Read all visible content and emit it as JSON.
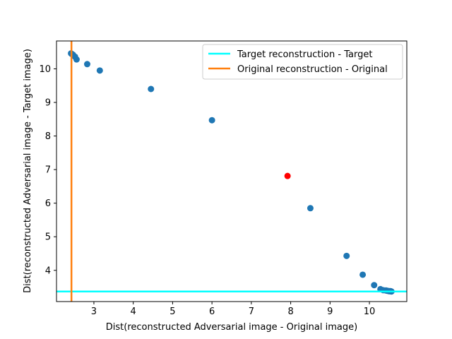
{
  "chart_data": {
    "type": "scatter",
    "title": "",
    "xlabel": "Dist(reconstructed Adversarial image - Original image)",
    "ylabel": "Dist(reconstructed Adversarial image - Target image)",
    "xlim": [
      2.05,
      10.95
    ],
    "ylim": [
      3.07,
      10.83
    ],
    "xticks": [
      3,
      4,
      5,
      6,
      7,
      8,
      9,
      10
    ],
    "yticks": [
      4,
      5,
      6,
      7,
      8,
      9,
      10
    ],
    "grid": false,
    "legend_position": "upper right",
    "series": [
      {
        "kind": "scatter",
        "color": "#1f77b4",
        "points": [
          [
            2.42,
            10.46
          ],
          [
            2.44,
            10.44
          ],
          [
            2.47,
            10.42
          ],
          [
            2.52,
            10.36
          ],
          [
            2.56,
            10.28
          ],
          [
            2.83,
            10.14
          ],
          [
            3.15,
            9.95
          ],
          [
            4.45,
            9.4
          ],
          [
            6.0,
            8.47
          ],
          [
            8.5,
            5.85
          ],
          [
            9.42,
            4.43
          ],
          [
            9.83,
            3.87
          ],
          [
            10.12,
            3.56
          ],
          [
            10.28,
            3.44
          ],
          [
            10.35,
            3.41
          ],
          [
            10.42,
            3.4
          ],
          [
            10.46,
            3.39
          ],
          [
            10.5,
            3.38
          ],
          [
            10.52,
            3.38
          ],
          [
            10.54,
            3.38
          ],
          [
            10.56,
            3.37
          ]
        ]
      },
      {
        "kind": "scatter",
        "color": "#ff0000",
        "points": [
          [
            7.92,
            6.81
          ]
        ]
      },
      {
        "kind": "hline",
        "name": "Target reconstruction - Target",
        "color": "#00ffff",
        "y": 3.37
      },
      {
        "kind": "vline",
        "name": "Original reconstruction - Original",
        "color": "#ff7f0e",
        "x": 2.43
      }
    ]
  }
}
